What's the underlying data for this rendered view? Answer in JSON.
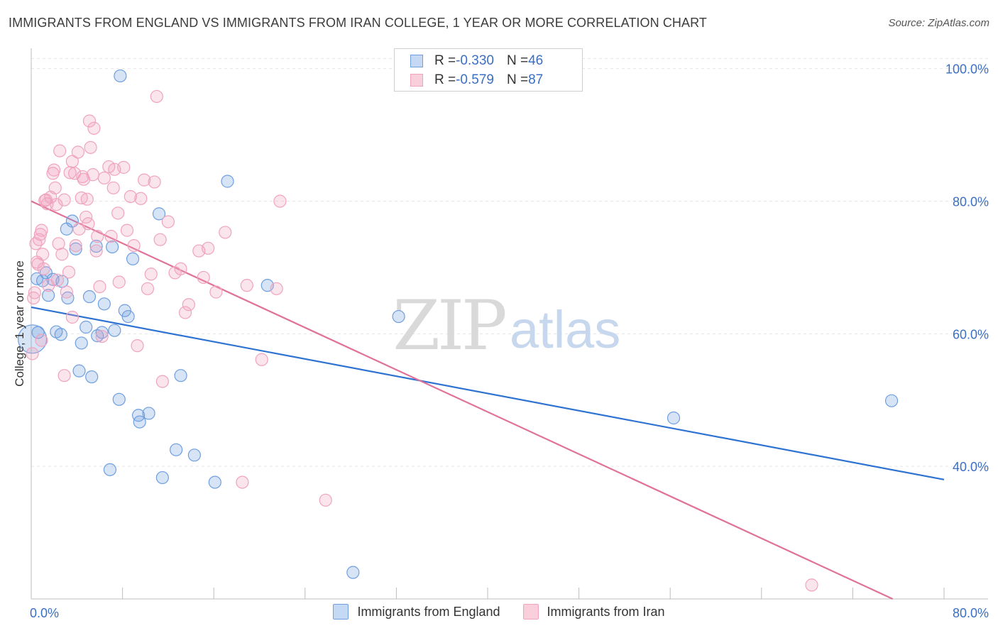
{
  "header": {
    "title": "IMMIGRANTS FROM ENGLAND VS IMMIGRANTS FROM IRAN COLLEGE, 1 YEAR OR MORE CORRELATION CHART",
    "source": "Source: ZipAtlas.com"
  },
  "watermark": {
    "zip": "ZIP",
    "atlas": "atlas"
  },
  "legend": {
    "england": {
      "r_label": "R = ",
      "r_value": "-0.330",
      "n_label": "N = ",
      "n_value": "46"
    },
    "iran": {
      "r_label": "R = ",
      "r_value": "-0.579",
      "n_label": "N = ",
      "n_value": "87"
    }
  },
  "chart_data": {
    "type": "scatter",
    "title": "IMMIGRANTS FROM ENGLAND VS IMMIGRANTS FROM IRAN COLLEGE, 1 YEAR OR MORE CORRELATION CHART",
    "xlabel": "",
    "ylabel": "College, 1 year or more",
    "xlim": [
      0,
      80
    ],
    "ylim": [
      20,
      102
    ],
    "x_tick_labels": [
      "0.0%",
      "80.0%"
    ],
    "y_ticks": [
      40,
      60,
      80,
      100
    ],
    "y_tick_labels": [
      "40.0%",
      "60.0%",
      "80.0%",
      "100.0%"
    ],
    "grid": true,
    "legend_position": "top-center",
    "colors": {
      "england": "#6f9fe0",
      "iran": "#f0a3bd",
      "england_line": "#2e72d2",
      "iran_line": "#e0729a",
      "tick_text": "#3b6fc4"
    },
    "series": [
      {
        "name": "Immigrants from England",
        "trend": {
          "x": [
            0,
            80
          ],
          "y": [
            64.0,
            38.0
          ]
        },
        "points": [
          [
            0.1,
            59.2
          ],
          [
            0.5,
            68.3
          ],
          [
            1.0,
            68.0
          ],
          [
            1.3,
            69.2
          ],
          [
            1.5,
            65.8
          ],
          [
            1.9,
            68.2
          ],
          [
            2.2,
            60.3
          ],
          [
            2.6,
            59.9
          ],
          [
            2.7,
            67.9
          ],
          [
            3.1,
            75.8
          ],
          [
            3.2,
            65.4
          ],
          [
            3.6,
            77.0
          ],
          [
            3.9,
            72.8
          ],
          [
            4.2,
            54.4
          ],
          [
            4.4,
            58.6
          ],
          [
            4.8,
            61.0
          ],
          [
            5.1,
            65.6
          ],
          [
            5.3,
            53.5
          ],
          [
            5.7,
            73.2
          ],
          [
            5.8,
            59.7
          ],
          [
            6.2,
            60.2
          ],
          [
            6.4,
            64.5
          ],
          [
            6.9,
            39.5
          ],
          [
            7.1,
            73.1
          ],
          [
            7.3,
            60.5
          ],
          [
            7.7,
            50.1
          ],
          [
            7.8,
            98.9
          ],
          [
            8.2,
            63.5
          ],
          [
            8.5,
            62.6
          ],
          [
            8.9,
            71.3
          ],
          [
            9.4,
            47.7
          ],
          [
            9.5,
            46.7
          ],
          [
            10.3,
            48.0
          ],
          [
            11.5,
            38.3
          ],
          [
            11.2,
            78.1
          ],
          [
            12.7,
            42.5
          ],
          [
            13.1,
            53.7
          ],
          [
            14.3,
            41.7
          ],
          [
            16.1,
            37.6
          ],
          [
            17.2,
            83.0
          ],
          [
            20.7,
            67.3
          ],
          [
            28.2,
            24.0
          ],
          [
            32.2,
            62.6
          ],
          [
            56.3,
            47.3
          ],
          [
            75.4,
            49.9
          ],
          [
            0.6,
            60.2
          ]
        ]
      },
      {
        "name": "Immigrants from Iran",
        "trend": {
          "x": [
            0,
            75.5
          ],
          "y": [
            80.0,
            20.0
          ]
        },
        "points": [
          [
            0.1,
            57.0
          ],
          [
            0.2,
            65.4
          ],
          [
            0.3,
            66.2
          ],
          [
            0.5,
            70.8
          ],
          [
            0.6,
            70.5
          ],
          [
            0.7,
            74.2
          ],
          [
            0.8,
            75.0
          ],
          [
            0.9,
            75.6
          ],
          [
            1.0,
            72.0
          ],
          [
            1.1,
            69.8
          ],
          [
            1.2,
            80.1
          ],
          [
            1.4,
            79.6
          ],
          [
            1.5,
            67.3
          ],
          [
            1.7,
            80.6
          ],
          [
            1.9,
            84.2
          ],
          [
            2.0,
            84.7
          ],
          [
            2.1,
            82.0
          ],
          [
            2.3,
            68.1
          ],
          [
            2.4,
            73.6
          ],
          [
            2.5,
            87.6
          ],
          [
            2.7,
            72.0
          ],
          [
            2.9,
            80.2
          ],
          [
            2.9,
            53.7
          ],
          [
            3.1,
            66.3
          ],
          [
            3.3,
            69.3
          ],
          [
            3.4,
            84.3
          ],
          [
            3.6,
            86.0
          ],
          [
            3.8,
            84.2
          ],
          [
            3.9,
            73.3
          ],
          [
            4.1,
            87.4
          ],
          [
            4.4,
            80.5
          ],
          [
            4.5,
            83.7
          ],
          [
            4.6,
            83.3
          ],
          [
            4.8,
            77.6
          ],
          [
            4.9,
            80.3
          ],
          [
            5.0,
            76.6
          ],
          [
            5.1,
            92.1
          ],
          [
            5.2,
            88.1
          ],
          [
            5.4,
            84.0
          ],
          [
            5.5,
            91.0
          ],
          [
            5.7,
            72.5
          ],
          [
            5.8,
            74.7
          ],
          [
            6.2,
            59.6
          ],
          [
            6.4,
            83.5
          ],
          [
            6.8,
            85.2
          ],
          [
            7.0,
            74.7
          ],
          [
            7.2,
            82.0
          ],
          [
            7.3,
            84.8
          ],
          [
            7.6,
            78.2
          ],
          [
            7.7,
            67.8
          ],
          [
            8.1,
            85.1
          ],
          [
            8.4,
            75.6
          ],
          [
            8.7,
            80.7
          ],
          [
            9.3,
            58.2
          ],
          [
            9.6,
            80.4
          ],
          [
            9.9,
            83.2
          ],
          [
            10.2,
            66.8
          ],
          [
            10.5,
            69.0
          ],
          [
            10.8,
            82.9
          ],
          [
            11.0,
            95.8
          ],
          [
            11.3,
            74.2
          ],
          [
            11.5,
            52.8
          ],
          [
            12.0,
            76.9
          ],
          [
            12.6,
            69.2
          ],
          [
            13.1,
            69.8
          ],
          [
            13.5,
            63.2
          ],
          [
            13.8,
            64.4
          ],
          [
            14.7,
            72.5
          ],
          [
            15.1,
            68.5
          ],
          [
            15.5,
            72.9
          ],
          [
            16.2,
            66.3
          ],
          [
            17.0,
            75.3
          ],
          [
            18.5,
            37.6
          ],
          [
            18.9,
            67.3
          ],
          [
            20.2,
            56.1
          ],
          [
            21.5,
            66.8
          ],
          [
            21.8,
            80.0
          ],
          [
            25.8,
            34.9
          ],
          [
            68.4,
            22.1
          ],
          [
            0.4,
            73.6
          ],
          [
            1.3,
            80.2
          ],
          [
            2.2,
            79.5
          ],
          [
            3.6,
            62.5
          ],
          [
            4.2,
            75.8
          ],
          [
            6.0,
            67.1
          ],
          [
            0.9,
            59.0
          ],
          [
            9.0,
            73.3
          ]
        ]
      }
    ]
  },
  "bottom_legend": {
    "england_label": "Immigrants from England",
    "iran_label": "Immigrants from Iran"
  }
}
